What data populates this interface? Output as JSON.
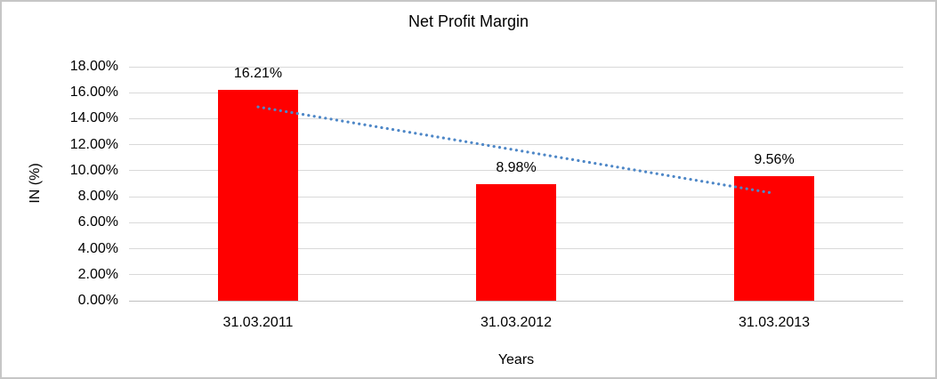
{
  "frame": {
    "background_color": "#FFFFFF",
    "border_color": "#C6C6C6"
  },
  "chart_data": {
    "type": "bar",
    "title": "Net Profit Margin",
    "xlabel": "Years",
    "ylabel": "IN (%)",
    "categories": [
      "31.03.2011",
      "31.03.2012",
      "31.03.2013"
    ],
    "values": [
      16.21,
      8.98,
      9.56
    ],
    "data_labels": [
      "16.21%",
      "8.98%",
      "9.56%"
    ],
    "ylim": [
      0,
      18
    ],
    "y_ticks": [
      {
        "value": 0,
        "label": "0.00%"
      },
      {
        "value": 2,
        "label": "2.00%"
      },
      {
        "value": 4,
        "label": "4.00%"
      },
      {
        "value": 6,
        "label": "6.00%"
      },
      {
        "value": 8,
        "label": "8.00%"
      },
      {
        "value": 10,
        "label": "10.00%"
      },
      {
        "value": 12,
        "label": "12.00%"
      },
      {
        "value": 14,
        "label": "14.00%"
      },
      {
        "value": 16,
        "label": "16.00%"
      },
      {
        "value": 18,
        "label": "18.00%"
      }
    ],
    "grid": true,
    "legend": "none",
    "bar_color": "#FF0000",
    "gridline_color": "#D9D9D9",
    "trendline": {
      "type": "linear",
      "style": "dotted",
      "color": "#4E87C7",
      "start_value": 14.91,
      "end_value": 8.26
    }
  }
}
